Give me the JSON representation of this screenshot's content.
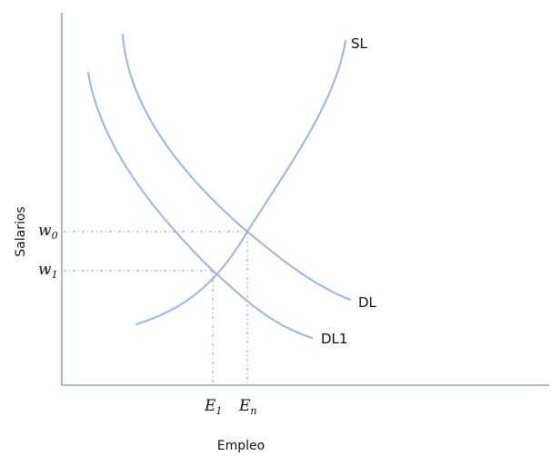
{
  "diagram": {
    "axes": {
      "x_title": "Empleo",
      "y_title": "Salarios"
    },
    "curves": {
      "supply": "SL",
      "demand": "DL",
      "demand_shifted": "DL1"
    },
    "y_marks": {
      "w0": {
        "base": "w",
        "sub": "0"
      },
      "w1": {
        "base": "w",
        "sub": "1"
      }
    },
    "x_marks": {
      "e1": {
        "base": "E",
        "sub": "1"
      },
      "en": {
        "base": "E",
        "sub": "n"
      }
    },
    "colors": {
      "curve": "#9db3d9",
      "axis": "#8fa4c4",
      "text": "#111111"
    }
  }
}
